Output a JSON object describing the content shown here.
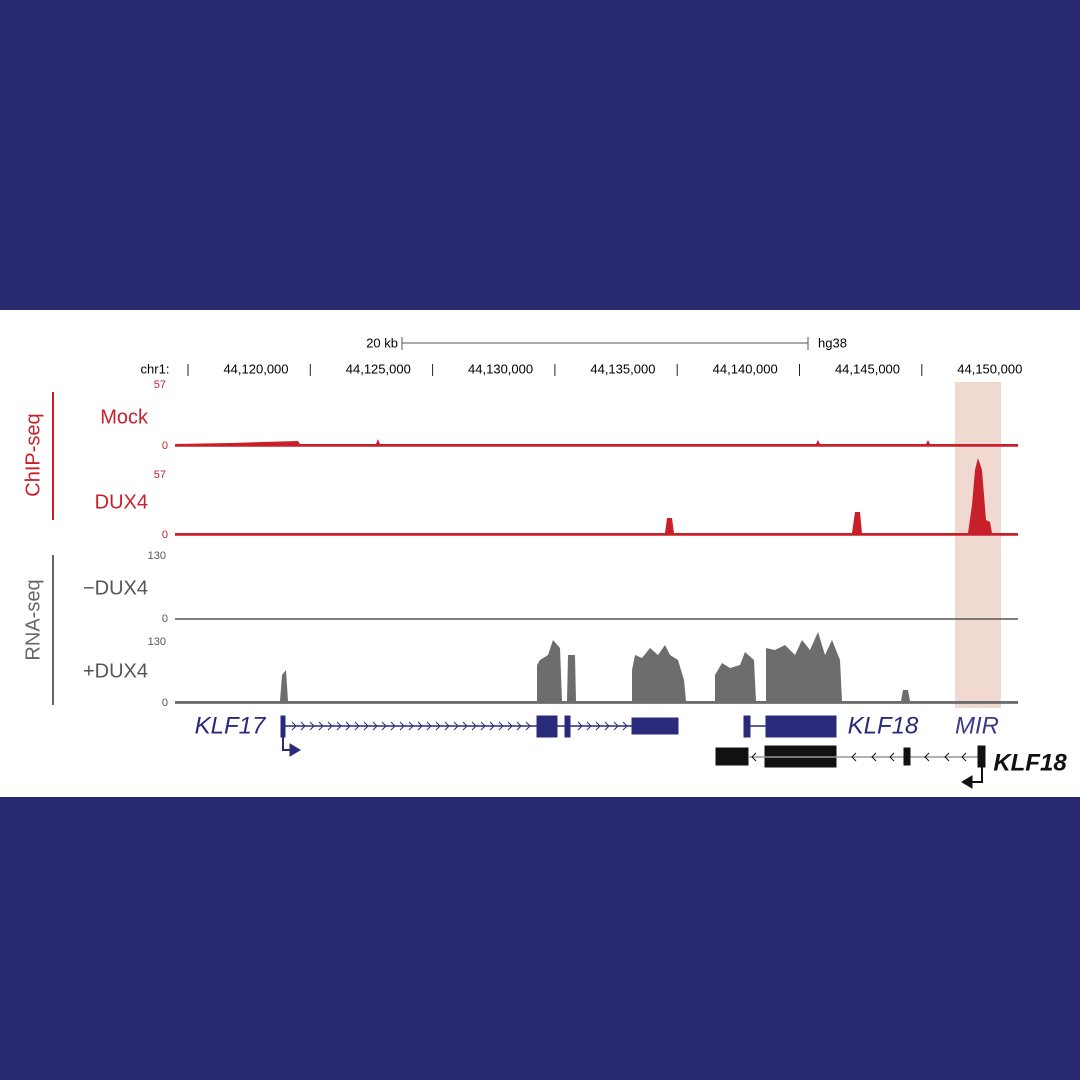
{
  "scale": {
    "label": "20 kb",
    "assembly": "hg38"
  },
  "ruler": {
    "chrom": "chr1:",
    "ticks": [
      "44,120,000",
      "44,125,000",
      "44,130,000",
      "44,135,000",
      "44,140,000",
      "44,145,000",
      "44,150,000"
    ]
  },
  "groups": [
    {
      "label": "ChIP-seq",
      "tracks": [
        {
          "name": "Mock",
          "max": "57",
          "min": "0"
        },
        {
          "name": "DUX4",
          "max": "57",
          "min": "0"
        }
      ]
    },
    {
      "label": "RNA-seq",
      "tracks": [
        {
          "name": "−DUX4",
          "max": "130",
          "min": "0"
        },
        {
          "name": "+DUX4",
          "max": "130",
          "min": "0"
        }
      ]
    }
  ],
  "genes": {
    "gene_1": "KLF17",
    "gene_2": "KLF18",
    "gene_3": "MIR",
    "gene_4": "KLF18"
  }
}
